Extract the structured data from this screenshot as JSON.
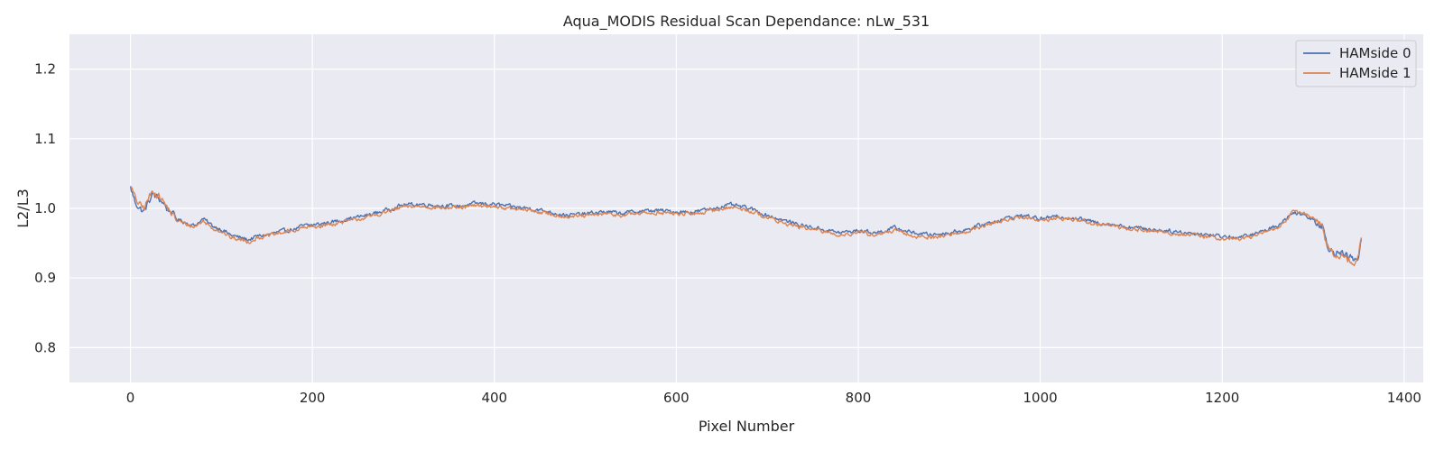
{
  "chart_data": {
    "type": "line",
    "title": "Aqua_MODIS Residual Scan Dependance: nLw_531",
    "xlabel": "Pixel Number",
    "ylabel": "L2/L3",
    "xlim": [
      -67,
      1421
    ],
    "ylim": [
      0.75,
      1.25
    ],
    "xticks": [
      0,
      200,
      400,
      600,
      800,
      1000,
      1200,
      1400
    ],
    "xtick_labels": [
      "0",
      "200",
      "400",
      "600",
      "800",
      "1000",
      "1200",
      "1400"
    ],
    "yticks": [
      0.8,
      0.9,
      1.0,
      1.1,
      1.2
    ],
    "ytick_labels": [
      "0.8",
      "0.9",
      "1.0",
      "1.1",
      "1.2"
    ],
    "grid": true,
    "legend_position": "top-right",
    "background": "#eaeaf2",
    "x_range": [
      0,
      1353
    ],
    "series": [
      {
        "name": "HAMside 0",
        "color": "#4c72b0",
        "x": [
          0,
          5,
          10,
          15,
          20,
          25,
          30,
          35,
          40,
          45,
          50,
          60,
          70,
          80,
          90,
          100,
          110,
          120,
          130,
          140,
          150,
          160,
          170,
          180,
          190,
          200,
          220,
          240,
          260,
          280,
          300,
          320,
          340,
          360,
          380,
          400,
          420,
          440,
          460,
          480,
          500,
          520,
          540,
          560,
          580,
          600,
          620,
          640,
          660,
          680,
          700,
          720,
          740,
          760,
          780,
          800,
          820,
          840,
          860,
          880,
          900,
          920,
          940,
          960,
          980,
          1000,
          1020,
          1040,
          1060,
          1080,
          1100,
          1120,
          1140,
          1160,
          1180,
          1200,
          1220,
          1240,
          1260,
          1270,
          1280,
          1290,
          1300,
          1310,
          1315,
          1320,
          1330,
          1340,
          1345,
          1350,
          1353
        ],
        "y": [
          1.03,
          1.01,
          1.0,
          0.995,
          1.01,
          1.02,
          1.015,
          1.01,
          1.0,
          0.995,
          0.985,
          0.98,
          0.975,
          0.985,
          0.975,
          0.97,
          0.962,
          0.958,
          0.955,
          0.96,
          0.962,
          0.965,
          0.968,
          0.97,
          0.975,
          0.976,
          0.98,
          0.985,
          0.99,
          0.997,
          1.005,
          1.006,
          1.004,
          1.003,
          1.007,
          1.006,
          1.002,
          1.0,
          0.995,
          0.99,
          0.992,
          0.995,
          0.993,
          0.996,
          0.997,
          0.995,
          0.995,
          1.0,
          1.005,
          1.0,
          0.99,
          0.982,
          0.975,
          0.97,
          0.965,
          0.968,
          0.965,
          0.972,
          0.965,
          0.962,
          0.965,
          0.97,
          0.978,
          0.985,
          0.99,
          0.985,
          0.988,
          0.986,
          0.98,
          0.977,
          0.973,
          0.97,
          0.968,
          0.965,
          0.963,
          0.96,
          0.958,
          0.965,
          0.975,
          0.985,
          0.995,
          0.99,
          0.985,
          0.975,
          0.95,
          0.94,
          0.935,
          0.93,
          0.925,
          0.93,
          0.955
        ]
      },
      {
        "name": "HAMside 1",
        "color": "#dd8452",
        "x": [
          0,
          5,
          10,
          15,
          20,
          25,
          30,
          35,
          40,
          45,
          50,
          60,
          70,
          80,
          90,
          100,
          110,
          120,
          130,
          140,
          150,
          160,
          170,
          180,
          190,
          200,
          220,
          240,
          260,
          280,
          300,
          320,
          340,
          360,
          380,
          400,
          420,
          440,
          460,
          480,
          500,
          520,
          540,
          560,
          580,
          600,
          620,
          640,
          660,
          680,
          700,
          720,
          740,
          760,
          780,
          800,
          820,
          840,
          860,
          880,
          900,
          920,
          940,
          960,
          980,
          1000,
          1020,
          1040,
          1060,
          1080,
          1100,
          1120,
          1140,
          1160,
          1180,
          1200,
          1220,
          1240,
          1260,
          1270,
          1280,
          1290,
          1300,
          1310,
          1315,
          1320,
          1330,
          1340,
          1345,
          1350,
          1353
        ],
        "y": [
          1.033,
          1.015,
          1.005,
          1.0,
          1.015,
          1.025,
          1.02,
          1.012,
          1.002,
          0.993,
          0.983,
          0.978,
          0.973,
          0.982,
          0.972,
          0.967,
          0.958,
          0.955,
          0.952,
          0.958,
          0.96,
          0.963,
          0.966,
          0.968,
          0.972,
          0.973,
          0.977,
          0.982,
          0.987,
          0.994,
          1.002,
          1.003,
          1.001,
          1.0,
          1.004,
          1.003,
          0.999,
          0.997,
          0.992,
          0.988,
          0.989,
          0.992,
          0.99,
          0.993,
          0.994,
          0.992,
          0.992,
          0.997,
          1.002,
          0.997,
          0.987,
          0.978,
          0.972,
          0.967,
          0.962,
          0.965,
          0.962,
          0.968,
          0.96,
          0.958,
          0.962,
          0.967,
          0.976,
          0.983,
          0.988,
          0.982,
          0.986,
          0.984,
          0.978,
          0.975,
          0.97,
          0.968,
          0.965,
          0.962,
          0.96,
          0.957,
          0.956,
          0.962,
          0.972,
          0.982,
          0.998,
          0.992,
          0.987,
          0.972,
          0.948,
          0.937,
          0.932,
          0.927,
          0.922,
          0.928,
          0.958
        ]
      }
    ]
  }
}
